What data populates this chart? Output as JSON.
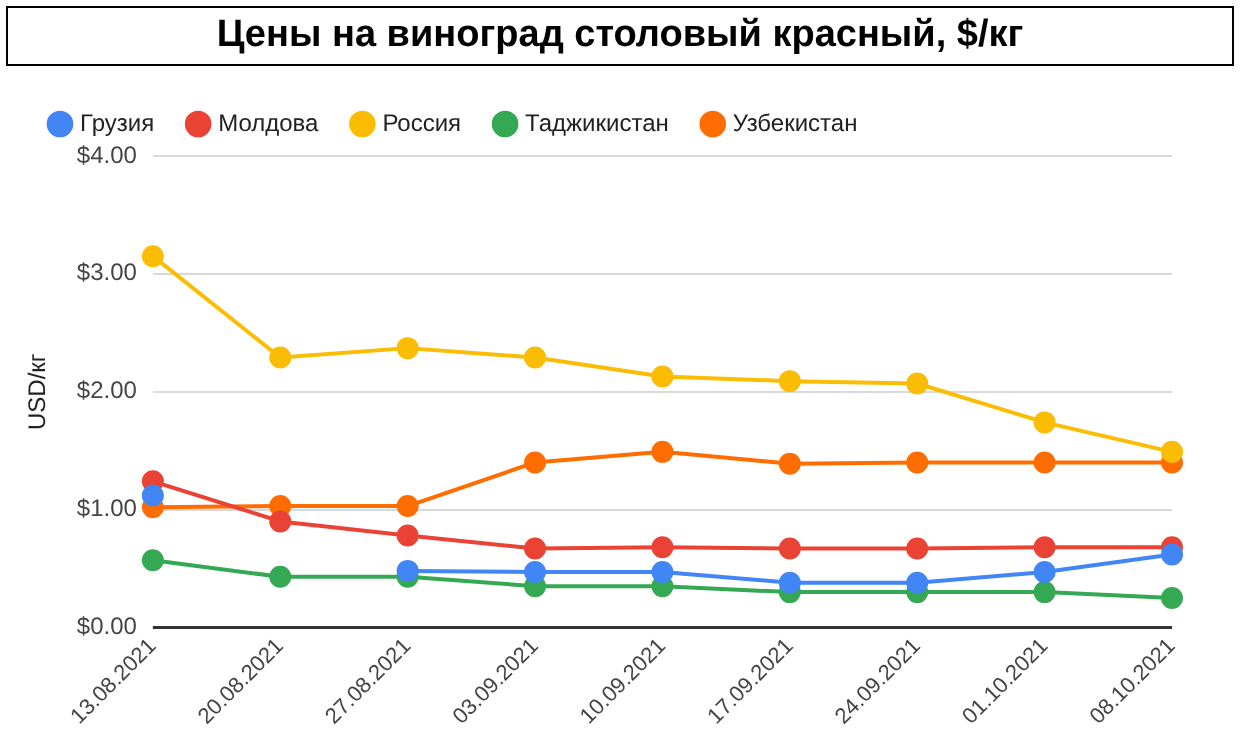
{
  "chart_data": {
    "type": "line",
    "title": "Цены на виноград столовый красный, $/кг",
    "ylabel": "USD/кг",
    "categories": [
      "13.08.2021",
      "20.08.2021",
      "27.08.2021",
      "03.09.2021",
      "10.09.2021",
      "17.09.2021",
      "24.09.2021",
      "01.10.2021",
      "08.10.2021"
    ],
    "series": [
      {
        "name": "Грузия",
        "color": "#4285f4",
        "values": [
          1.12,
          null,
          0.48,
          0.47,
          0.47,
          0.38,
          0.38,
          0.47,
          0.62
        ]
      },
      {
        "name": "Молдова",
        "color": "#ea4335",
        "values": [
          1.24,
          0.9,
          0.78,
          0.67,
          0.68,
          0.67,
          0.67,
          0.68,
          0.68
        ]
      },
      {
        "name": "Россия",
        "color": "#fbbc04",
        "values": [
          3.15,
          2.29,
          2.37,
          2.29,
          2.13,
          2.09,
          2.07,
          1.74,
          1.49
        ]
      },
      {
        "name": "Таджикистан",
        "color": "#34a853",
        "values": [
          0.57,
          0.43,
          0.43,
          0.35,
          0.35,
          0.3,
          0.3,
          0.3,
          0.25
        ]
      },
      {
        "name": "Узбекистан",
        "color": "#ff6d01",
        "values": [
          1.02,
          1.03,
          1.03,
          1.4,
          1.49,
          1.39,
          1.4,
          1.4,
          1.4
        ]
      }
    ],
    "ylim": [
      0,
      4
    ],
    "yticks": [
      {
        "value": 0,
        "label": "$0.00"
      },
      {
        "value": 1,
        "label": "$1.00"
      },
      {
        "value": 2,
        "label": "$2.00"
      },
      {
        "value": 3,
        "label": "$3.00"
      },
      {
        "value": 4,
        "label": "$4.00"
      }
    ],
    "grid": "y",
    "legend": "top",
    "marker": "circle",
    "line_style": "solid"
  }
}
